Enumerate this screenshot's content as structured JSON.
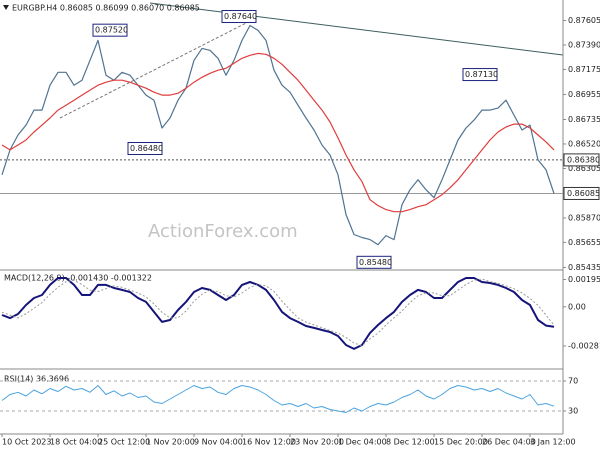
{
  "chart_data": [
    {
      "type": "line",
      "title": "EURGBP.H4 0.86085 0.86099 0.86070 0.86085",
      "watermark": "ActionForex.com",
      "categories": [
        "10 Oct 2023",
        null,
        null,
        null,
        null,
        null,
        "18 Oct 04:00",
        null,
        null,
        null,
        null,
        null,
        "25 Oct 12:00",
        null,
        null,
        null,
        null,
        null,
        "1 Nov 20:00",
        null,
        null,
        null,
        null,
        null,
        "9 Nov 04:00",
        null,
        null,
        null,
        null,
        null,
        "16 Nov 12:00",
        null,
        null,
        null,
        null,
        null,
        "23 Nov 20:00",
        null,
        null,
        null,
        null,
        null,
        "1 Dec 04:00",
        null,
        null,
        null,
        null,
        null,
        "8 Dec 12:00",
        null,
        null,
        null,
        null,
        null,
        "15 Dec 20:00",
        null,
        null,
        null,
        null,
        null,
        "26 Dec 04:00",
        null,
        null,
        null,
        null,
        null,
        "3 Jan 12:00",
        null,
        null,
        null
      ],
      "series": [
        {
          "color": "#4f7391",
          "values": [
            0.86249,
            0.86468,
            0.86599,
            0.86686,
            0.86818,
            0.86818,
            0.87036,
            0.8715,
            0.8715,
            0.87036,
            0.8708,
            0.87255,
            0.8743,
            0.87124,
            0.8708,
            0.8715,
            0.87124,
            0.87036,
            0.86949,
            0.86905,
            0.8666,
            0.86748,
            0.86905,
            0.8701,
            0.87255,
            0.8736,
            0.87343,
            0.87273,
            0.87124,
            0.87255,
            0.8743,
            0.87561,
            0.87518,
            0.8743,
            0.87168,
            0.87036,
            0.86975,
            0.86861,
            0.86748,
            0.86643,
            0.86511,
            0.86423,
            0.86249,
            0.85899,
            0.85724,
            0.85698,
            0.8568,
            0.85636,
            0.85715,
            0.8568,
            0.85986,
            0.86118,
            0.86205,
            0.86118,
            0.86048,
            0.86205,
            0.8638,
            0.86555,
            0.8666,
            0.8673,
            0.86818,
            0.86818,
            0.86835,
            0.86905,
            0.86774,
            0.86643,
            0.86686,
            0.8638,
            0.86293,
            0.86085
          ]
        },
        {
          "color": "#e03c3c",
          "values": [
            0.86511,
            0.86468,
            0.86511,
            0.86555,
            0.86625,
            0.86686,
            0.86748,
            0.86818,
            0.86861,
            0.86905,
            0.86949,
            0.86993,
            0.87036,
            0.87063,
            0.8708,
            0.8708,
            0.87063,
            0.87036,
            0.8701,
            0.86975,
            0.86949,
            0.86949,
            0.86966,
            0.8701,
            0.87063,
            0.87106,
            0.87141,
            0.87168,
            0.87185,
            0.87229,
            0.87273,
            0.87299,
            0.87316,
            0.87308,
            0.87273,
            0.8722,
            0.8715,
            0.8708,
            0.86993,
            0.86905,
            0.86818,
            0.86713,
            0.86573,
            0.86423,
            0.86293,
            0.86188,
            0.8603,
            0.85978,
            0.85943,
            0.85925,
            0.85925,
            0.85943,
            0.85969,
            0.85986,
            0.8603,
            0.86074,
            0.86135,
            0.86205,
            0.86293,
            0.8638,
            0.86468,
            0.86555,
            0.86625,
            0.86669,
            0.86695,
            0.86695,
            0.8666,
            0.86599,
            0.86538,
            0.86468
          ]
        }
      ],
      "ylim": [
        0.8543,
        0.8775
      ],
      "yticks": [
        0.87605,
        {
          "value": 0.8739,
          "label": "0.87390"
        },
        0.87175,
        0.86955,
        0.86735,
        {
          "value": 0.8652,
          "label": "0.86520"
        },
        0.86305,
        {
          "value": 0.8587,
          "label": "0.85870"
        },
        0.85655,
        0.85435
      ],
      "annotations": [
        {
          "value": 0.8752,
          "label": "0.87520"
        },
        {
          "value": 0.8764,
          "label": "0.87640"
        },
        {
          "value": 0.8648,
          "label": "0.86480"
        },
        {
          "value": 0.8713,
          "label": "0.87130"
        },
        {
          "value": 0.8548,
          "label": "0.85480"
        }
      ],
      "price_lines": [
        {
          "value": 0.8638,
          "label": "0.86380",
          "style": "dashed"
        },
        {
          "value": 0.86085,
          "label": "0.86085",
          "style": "solid"
        }
      ]
    },
    {
      "type": "line",
      "title": "MACD(12,26,9) -0.001430 -0.001322",
      "series": [
        {
          "color": "#14147a",
          "width": 2,
          "values": [
            -0.00059,
            -0.00081,
            -0.00052,
            0.00013,
            0.00063,
            0.00085,
            0.00157,
            0.00207,
            0.00207,
            0.00157,
            0.00085,
            0.00085,
            0.00157,
            0.00157,
            0.00135,
            0.00121,
            0.00106,
            0.00063,
            0.00035,
            -0.00037,
            -0.00109,
            -0.00095,
            -0.00023,
            0.00035,
            0.00106,
            0.00135,
            0.00121,
            0.00085,
            0.00049,
            0.00085,
            0.00157,
            0.00178,
            0.00157,
            0.00121,
            0.00049,
            -0.00037,
            -0.00081,
            -0.00109,
            -0.00138,
            -0.00152,
            -0.00167,
            -0.00181,
            -0.0021,
            -0.00275,
            -0.00303,
            -0.00275,
            -0.00188,
            -0.00131,
            -0.00081,
            -0.00037,
            0.00035,
            0.00085,
            0.00121,
            0.00106,
            0.00063,
            0.00063,
            0.00121,
            0.00178,
            0.00207,
            0.00207,
            0.00178,
            0.00171,
            0.00157,
            0.00135,
            0.00106,
            0.00049,
            0.00013,
            -0.00095,
            -0.00135,
            -0.00143
          ]
        },
        {
          "color": "#9a9a9a",
          "width": 1,
          "line_style": "dotted",
          "values": [
            -0.0004,
            -0.0006,
            -0.0008,
            -0.0005,
            -0.0001,
            0.0003,
            0.0009,
            0.0014,
            0.0018,
            0.0019,
            0.0016,
            0.0012,
            0.0011,
            0.0013,
            0.0015,
            0.0014,
            0.0012,
            0.001,
            0.0007,
            0.0002,
            -0.0004,
            -0.0008,
            -0.0008,
            -0.0003,
            0.0004,
            0.0009,
            0.0012,
            0.0011,
            0.0008,
            0.0007,
            0.001,
            0.0014,
            0.0016,
            0.0015,
            0.0011,
            0.0004,
            -0.0002,
            -0.0008,
            -0.0011,
            -0.0013,
            -0.0015,
            -0.0017,
            -0.0019,
            -0.0022,
            -0.0026,
            -0.0028,
            -0.0023,
            -0.0019,
            -0.0013,
            -0.0008,
            -0.0003,
            0.0003,
            0.0008,
            0.001,
            0.001,
            0.0008,
            0.0008,
            0.0012,
            0.0016,
            0.0019,
            0.002,
            0.0018,
            0.0017,
            0.0015,
            0.0013,
            0.001,
            0.0006,
            0.0001,
            -0.0006,
            -0.00132
          ]
        }
      ],
      "ylim": [
        -0.0044,
        0.0025
      ],
      "yticks": [
        0.001959,
        {
          "value": 0,
          "label": "0.00"
        },
        -0.002818
      ]
    },
    {
      "type": "line",
      "title": "RSI(14) 36.3696",
      "series": [
        {
          "color": "#4aa3e0",
          "width": 1,
          "values": [
            44,
            52,
            55,
            50,
            58,
            53,
            60,
            56,
            63,
            58,
            60,
            55,
            64,
            52,
            57,
            50,
            54,
            48,
            50,
            42,
            40,
            46,
            52,
            58,
            64,
            60,
            62,
            55,
            52,
            60,
            64,
            62,
            58,
            52,
            44,
            38,
            40,
            36,
            40,
            34,
            36,
            32,
            30,
            28,
            34,
            30,
            36,
            40,
            38,
            42,
            48,
            52,
            58,
            50,
            46,
            52,
            60,
            64,
            62,
            58,
            60,
            56,
            60,
            54,
            50,
            46,
            52,
            38,
            40,
            36.3696
          ]
        }
      ],
      "ylim": [
        2,
        82
      ],
      "yticks": [
        70,
        30
      ],
      "grid": true
    }
  ]
}
